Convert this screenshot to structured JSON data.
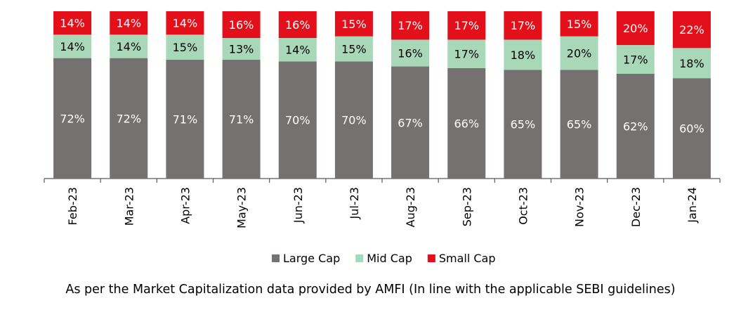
{
  "chart_data": {
    "type": "bar",
    "stacked": true,
    "categories": [
      "Feb-23",
      "Mar-23",
      "Apr-23",
      "May-23",
      "Jun-23",
      "Jul-23",
      "Aug-23",
      "Sep-23",
      "Oct-23",
      "Nov-23",
      "Dec-23",
      "Jan-24"
    ],
    "series": [
      {
        "name": "Large Cap",
        "color": "#767171",
        "label_color": "#ffffff",
        "values": [
          72,
          72,
          71,
          71,
          70,
          70,
          67,
          66,
          65,
          65,
          62,
          60
        ]
      },
      {
        "name": "Mid Cap",
        "color": "#a9d8b8",
        "label_color": "#000000",
        "values": [
          14,
          14,
          15,
          13,
          14,
          15,
          16,
          17,
          18,
          20,
          17,
          18
        ]
      },
      {
        "name": "Small Cap",
        "color": "#e3101b",
        "label_color": "#ffffff",
        "values": [
          14,
          14,
          14,
          16,
          16,
          15,
          17,
          17,
          17,
          15,
          20,
          22
        ]
      }
    ],
    "data_label_suffix": "%",
    "legend_position": "bottom",
    "grid": false
  },
  "footnote": "As per the Market Capitalization data provided by AMFI (In line with the applicable SEBI guidelines)"
}
